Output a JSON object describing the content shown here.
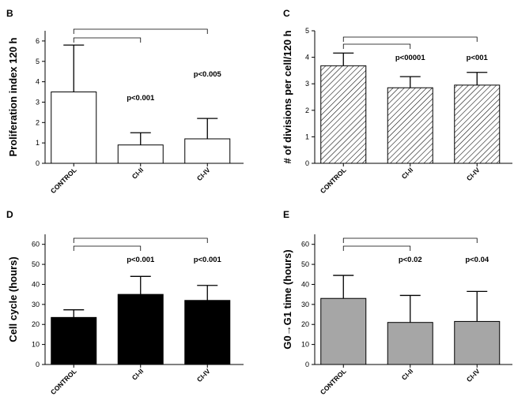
{
  "chart_data": [
    {
      "panel": "B",
      "type": "bar",
      "ylabel": "Proliferation index 120 h",
      "ylim": [
        0,
        6.5
      ],
      "yticks": [
        0,
        1,
        2,
        3,
        4,
        5,
        6
      ],
      "categories": [
        "CONTROL",
        "CI-II",
        "CI-IV"
      ],
      "values": [
        3.5,
        0.9,
        1.2
      ],
      "errors": [
        2.3,
        0.6,
        1.0
      ],
      "fill": "white",
      "comparisons": [
        "p<0.001",
        "p<0.005"
      ]
    },
    {
      "panel": "C",
      "type": "bar",
      "ylabel": "# of divisions per cell/120 h",
      "ylim": [
        0,
        5
      ],
      "yticks": [
        0,
        1,
        2,
        3,
        4,
        5
      ],
      "categories": [
        "CONTROL",
        "CI-II",
        "CI-IV"
      ],
      "values": [
        3.68,
        2.85,
        2.95
      ],
      "errors": [
        0.48,
        0.42,
        0.48
      ],
      "fill": "hatch",
      "comparisons": [
        "p<00001",
        "p<001"
      ]
    },
    {
      "panel": "D",
      "type": "bar",
      "ylabel": "Cell cycle (hours)",
      "ylim": [
        0,
        65
      ],
      "yticks": [
        0,
        10,
        20,
        30,
        40,
        50,
        60
      ],
      "categories": [
        "CONTROL",
        "CI-II",
        "CI-IV"
      ],
      "values": [
        23.5,
        35,
        32
      ],
      "errors": [
        3.8,
        9,
        7.5
      ],
      "fill": "black",
      "comparisons": [
        "p<0.001",
        "p<0.001"
      ]
    },
    {
      "panel": "E",
      "type": "bar",
      "ylabel": "G0→G1 time (hours)",
      "ylim": [
        0,
        65
      ],
      "yticks": [
        0,
        10,
        20,
        30,
        40,
        50,
        60
      ],
      "categories": [
        "CONTROL",
        "CI-II",
        "CI-IV"
      ],
      "values": [
        33,
        21,
        21.5
      ],
      "errors": [
        11.5,
        13.5,
        15
      ],
      "fill": "gray",
      "comparisons": [
        "p<0.02",
        "p<0.04"
      ]
    }
  ],
  "colors": {
    "axis": "#000000",
    "gray_bar": "#a6a6a6",
    "black_bar": "#000000",
    "white_bar": "#ffffff"
  }
}
